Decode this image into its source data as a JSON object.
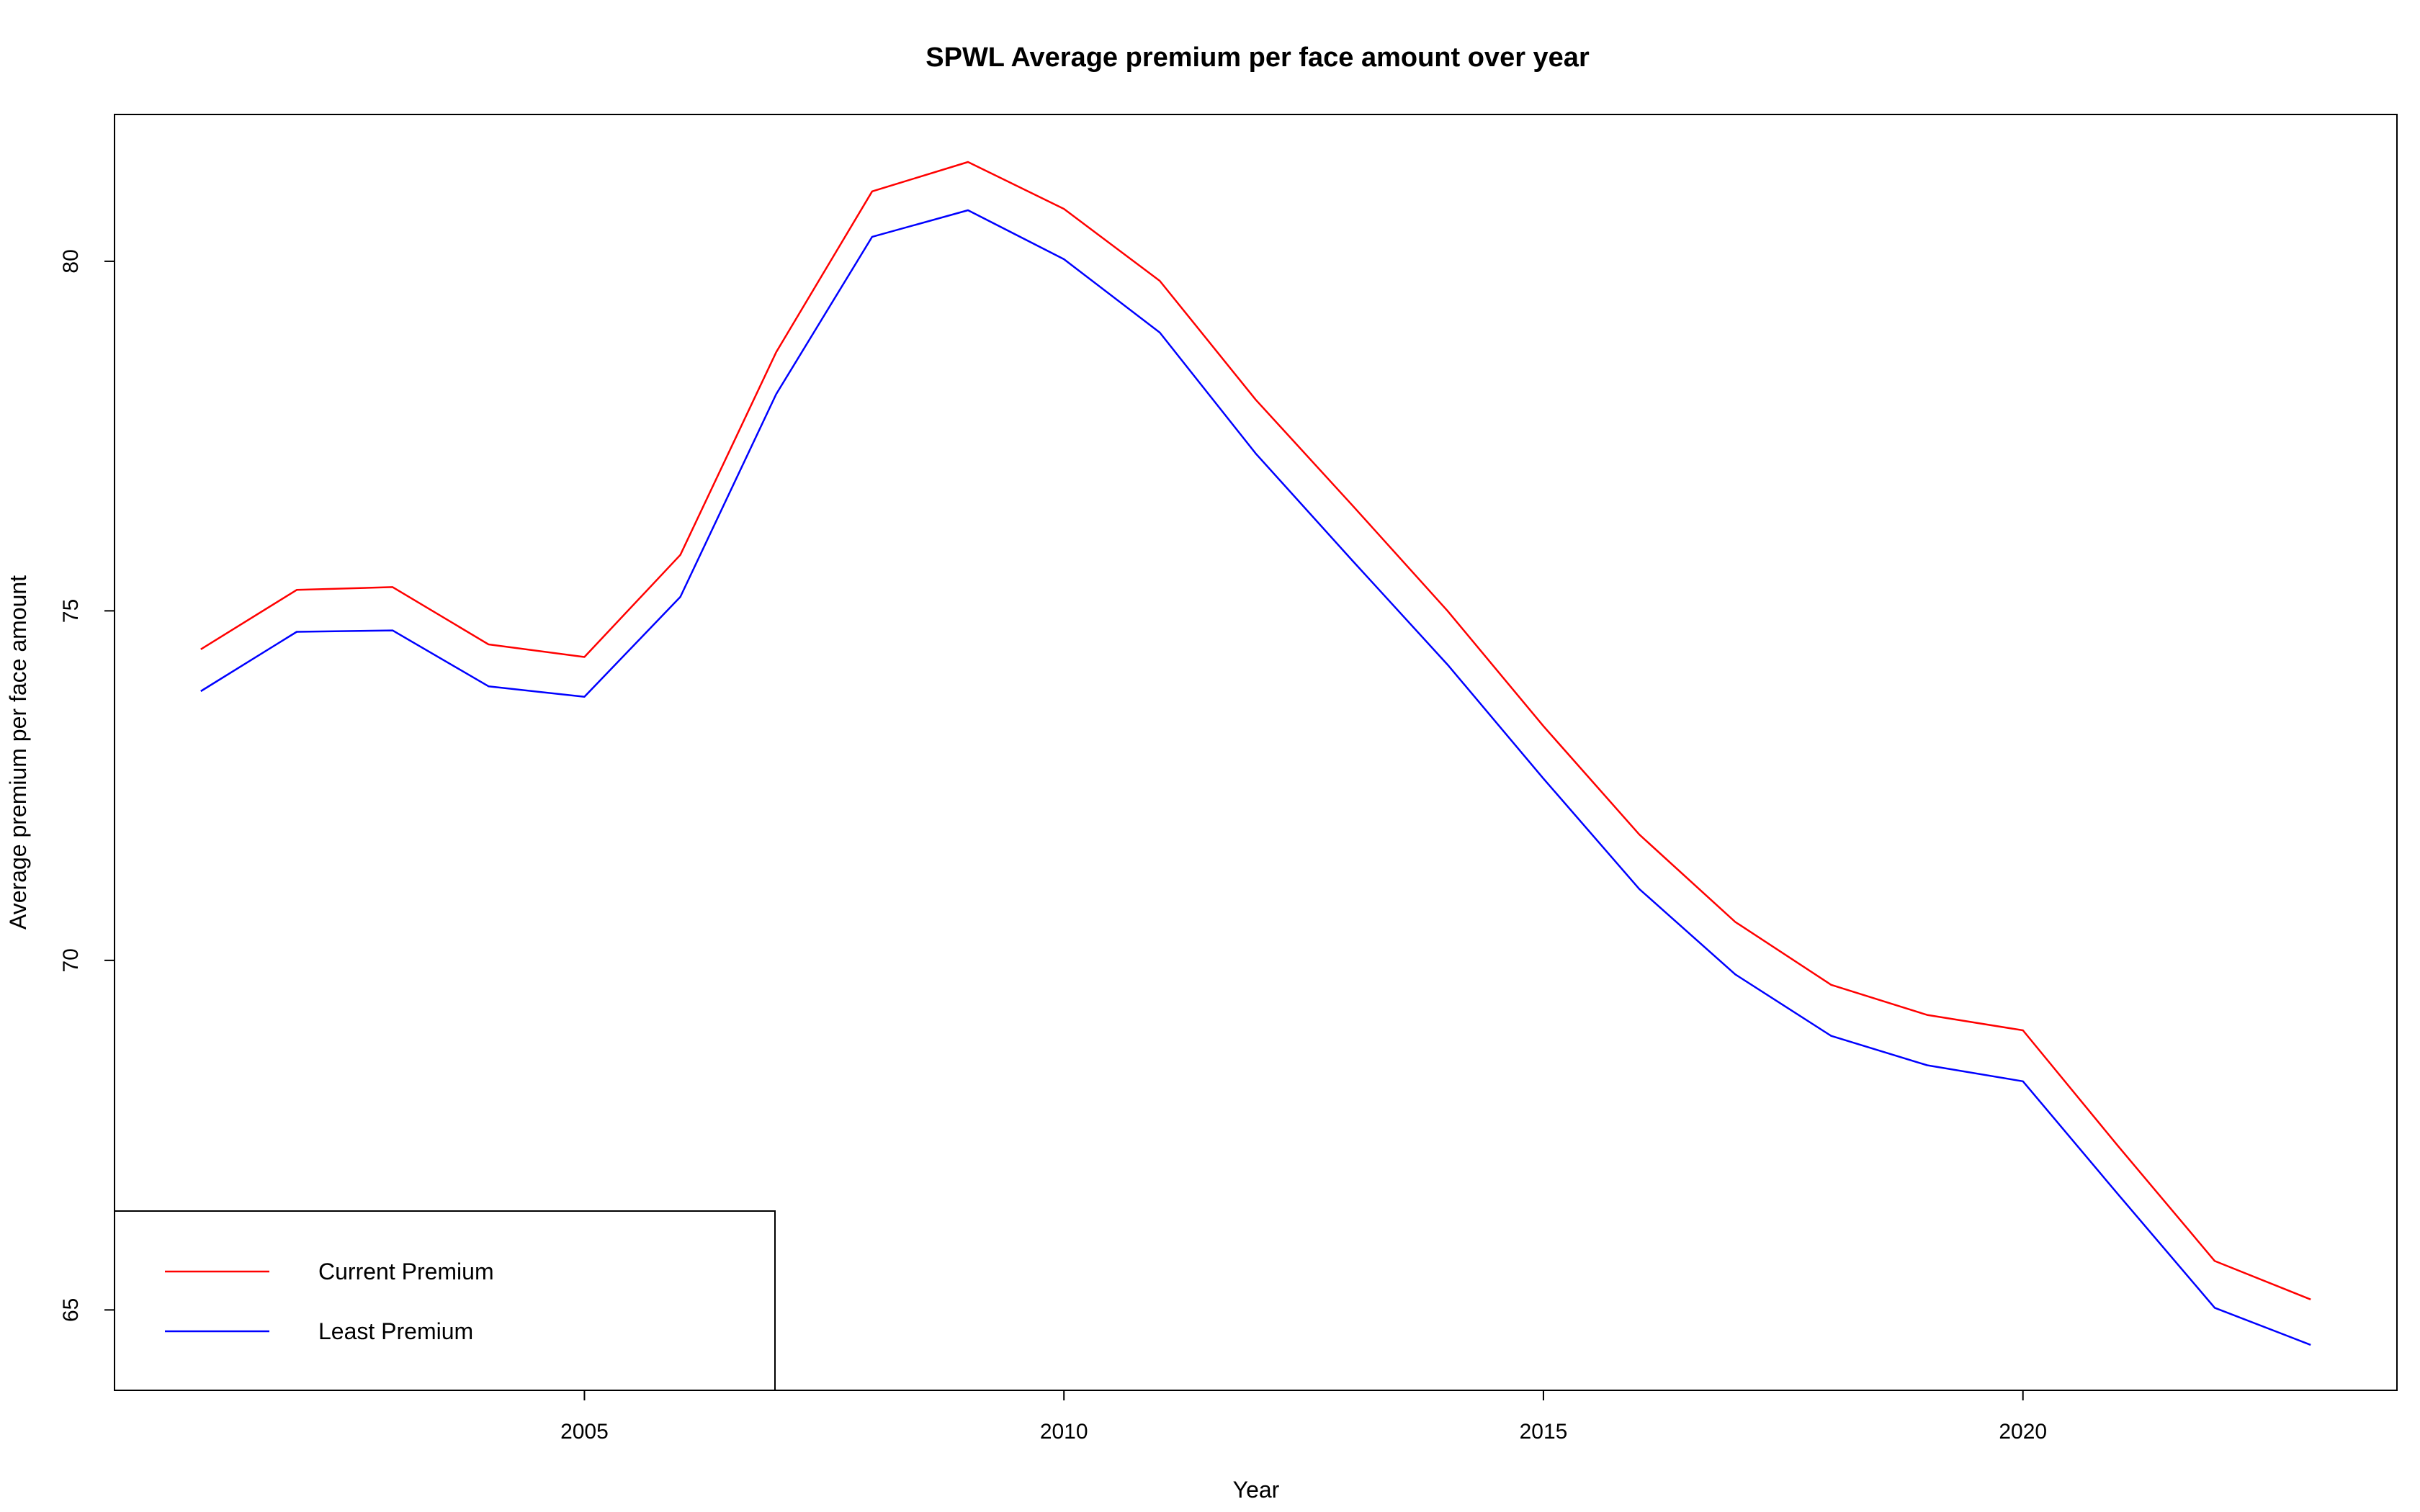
{
  "chart_data": {
    "type": "line",
    "title": "SPWL Average premium per face amount over year",
    "xlabel": "Year",
    "ylabel": "Average premium per face amount",
    "x": [
      2001,
      2002,
      2003,
      2004,
      2005,
      2006,
      2007,
      2008,
      2009,
      2010,
      2011,
      2012,
      2013,
      2014,
      2015,
      2016,
      2017,
      2018,
      2019,
      2020,
      2021,
      2022,
      2023
    ],
    "series": [
      {
        "name": "Current Premium",
        "color": "#ff0000",
        "values": [
          74.45,
          75.3,
          75.34,
          74.52,
          74.34,
          75.8,
          78.7,
          81.0,
          81.42,
          80.75,
          79.72,
          78.02,
          76.52,
          75.0,
          73.35,
          71.8,
          70.55,
          69.65,
          69.22,
          69.0,
          67.33,
          65.7,
          65.15
        ]
      },
      {
        "name": "Least Premium",
        "color": "#0000ff",
        "values": [
          73.85,
          74.7,
          74.72,
          73.92,
          73.77,
          75.2,
          78.1,
          80.35,
          80.73,
          80.03,
          78.98,
          77.25,
          75.73,
          74.23,
          72.6,
          71.02,
          69.8,
          68.92,
          68.5,
          68.27,
          66.64,
          65.03,
          64.5
        ]
      }
    ],
    "xlim": [
      2000.1,
      2023.9
    ],
    "ylim": [
      63.85,
      82.1
    ],
    "xticks": [
      2005,
      2010,
      2015,
      2020
    ],
    "yticks": [
      65,
      70,
      75,
      80
    ],
    "grid": false,
    "legend_position": "bottom-left"
  }
}
